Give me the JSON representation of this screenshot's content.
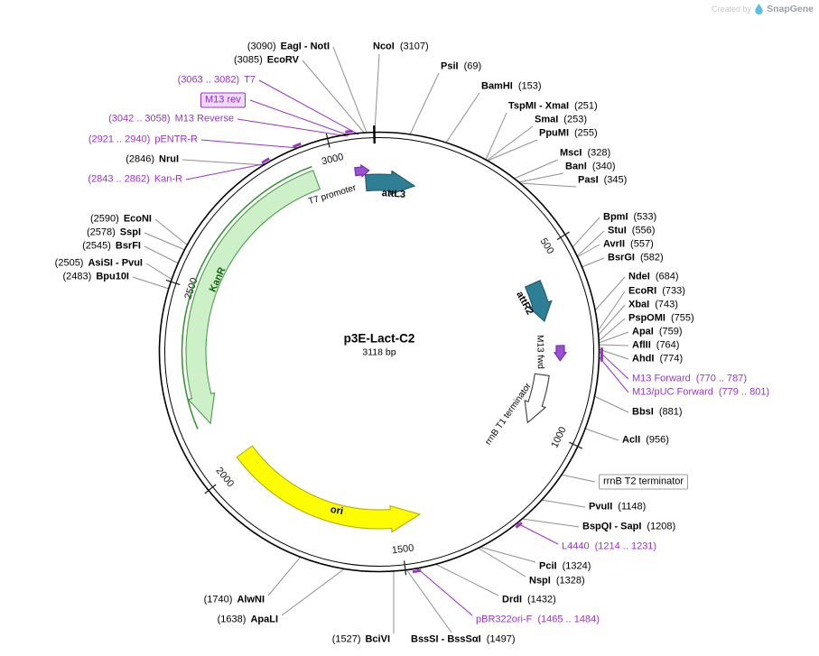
{
  "watermark": {
    "created_by": "Created by",
    "brand": "SnapGene"
  },
  "plasmid": {
    "name": "p3E-Lact-C2",
    "size": "3118 bp",
    "length_bp": 3118
  },
  "features": [
    {
      "label": "KanR"
    },
    {
      "label": "ori"
    },
    {
      "label": "attL3"
    },
    {
      "label": "attR2"
    },
    {
      "label": "M13 fwd"
    },
    {
      "label": "rrnB T1 terminator"
    },
    {
      "label": "T7 promoter"
    }
  ],
  "ticks": [
    {
      "label": "500",
      "pos": 500
    },
    {
      "label": "1000",
      "pos": 1000
    },
    {
      "label": "1500",
      "pos": 1500
    },
    {
      "label": "2000",
      "pos": 2000
    },
    {
      "label": "2500",
      "pos": 2500
    },
    {
      "label": "3000",
      "pos": 3000
    }
  ],
  "sites": [
    {
      "name": "EagI - NotI",
      "pos": "(3090)",
      "kind": "enzyme"
    },
    {
      "name": "EcoRV",
      "pos": "(3085)",
      "kind": "enzyme"
    },
    {
      "name": "T7",
      "pos": "(3063 .. 3082)",
      "kind": "primer"
    },
    {
      "name": "M13 rev",
      "pos": "",
      "kind": "box-primer"
    },
    {
      "name": "M13 Reverse",
      "pos": "(3042 .. 3058)",
      "kind": "primer"
    },
    {
      "name": "pENTR-R",
      "pos": "(2921 .. 2940)",
      "kind": "primer"
    },
    {
      "name": "NruI",
      "pos": "(2846)",
      "kind": "enzyme"
    },
    {
      "name": "Kan-R",
      "pos": "(2843 .. 2862)",
      "kind": "primer"
    },
    {
      "name": "EcoNI",
      "pos": "(2590)",
      "kind": "enzyme"
    },
    {
      "name": "SspI",
      "pos": "(2578)",
      "kind": "enzyme"
    },
    {
      "name": "BsrFI",
      "pos": "(2545)",
      "kind": "enzyme"
    },
    {
      "name": "AsiSI - PvuI",
      "pos": "(2505)",
      "kind": "enzyme"
    },
    {
      "name": "Bpu10I",
      "pos": "(2483)",
      "kind": "enzyme"
    },
    {
      "name": "NcoI",
      "pos": "(3107)",
      "kind": "enzyme"
    },
    {
      "name": "PsiI",
      "pos": "(69)",
      "kind": "enzyme"
    },
    {
      "name": "BamHI",
      "pos": "(153)",
      "kind": "enzyme"
    },
    {
      "name": "TspMI - XmaI",
      "pos": "(251)",
      "kind": "enzyme"
    },
    {
      "name": "SmaI",
      "pos": "(253)",
      "kind": "enzyme"
    },
    {
      "name": "PpuMI",
      "pos": "(255)",
      "kind": "enzyme"
    },
    {
      "name": "MscI",
      "pos": "(328)",
      "kind": "enzyme"
    },
    {
      "name": "BanI",
      "pos": "(340)",
      "kind": "enzyme"
    },
    {
      "name": "PasI",
      "pos": "(345)",
      "kind": "enzyme"
    },
    {
      "name": "BpmI",
      "pos": "(533)",
      "kind": "enzyme"
    },
    {
      "name": "StuI",
      "pos": "(556)",
      "kind": "enzyme"
    },
    {
      "name": "AvrII",
      "pos": "(557)",
      "kind": "enzyme"
    },
    {
      "name": "BsrGI",
      "pos": "(582)",
      "kind": "enzyme"
    },
    {
      "name": "NdeI",
      "pos": "(684)",
      "kind": "enzyme"
    },
    {
      "name": "EcoRI",
      "pos": "(733)",
      "kind": "enzyme"
    },
    {
      "name": "XbaI",
      "pos": "(743)",
      "kind": "enzyme"
    },
    {
      "name": "PspOMI",
      "pos": "(755)",
      "kind": "enzyme"
    },
    {
      "name": "ApaI",
      "pos": "(759)",
      "kind": "enzyme"
    },
    {
      "name": "AflII",
      "pos": "(764)",
      "kind": "enzyme"
    },
    {
      "name": "AhdI",
      "pos": "(774)",
      "kind": "enzyme"
    },
    {
      "name": "M13 Forward",
      "pos": "(770 .. 787)",
      "kind": "primer"
    },
    {
      "name": "M13/pUC Forward",
      "pos": "(779 .. 801)",
      "kind": "primer"
    },
    {
      "name": "BbsI",
      "pos": "(881)",
      "kind": "enzyme"
    },
    {
      "name": "AclI",
      "pos": "(956)",
      "kind": "enzyme"
    },
    {
      "name": "rrnB T2 terminator",
      "pos": "",
      "kind": "box-plain"
    },
    {
      "name": "PvuII",
      "pos": "(1148)",
      "kind": "enzyme"
    },
    {
      "name": "BspQI - SapI",
      "pos": "(1208)",
      "kind": "enzyme"
    },
    {
      "name": "L4440",
      "pos": "(1214 .. 1231)",
      "kind": "primer"
    },
    {
      "name": "PciI",
      "pos": "(1324)",
      "kind": "enzyme"
    },
    {
      "name": "NspI",
      "pos": "(1328)",
      "kind": "enzyme"
    },
    {
      "name": "DrdI",
      "pos": "(1432)",
      "kind": "enzyme"
    },
    {
      "name": "pBR322ori-F",
      "pos": "(1465 .. 1484)",
      "kind": "primer"
    },
    {
      "name": "BssSI - BssSαI",
      "pos": "(1497)",
      "kind": "enzyme"
    },
    {
      "name": "AlwNI",
      "pos": "(1740)",
      "kind": "enzyme"
    },
    {
      "name": "ApaLI",
      "pos": "(1638)",
      "kind": "enzyme"
    },
    {
      "name": "BciVI",
      "pos": "(1527)",
      "kind": "enzyme"
    }
  ]
}
